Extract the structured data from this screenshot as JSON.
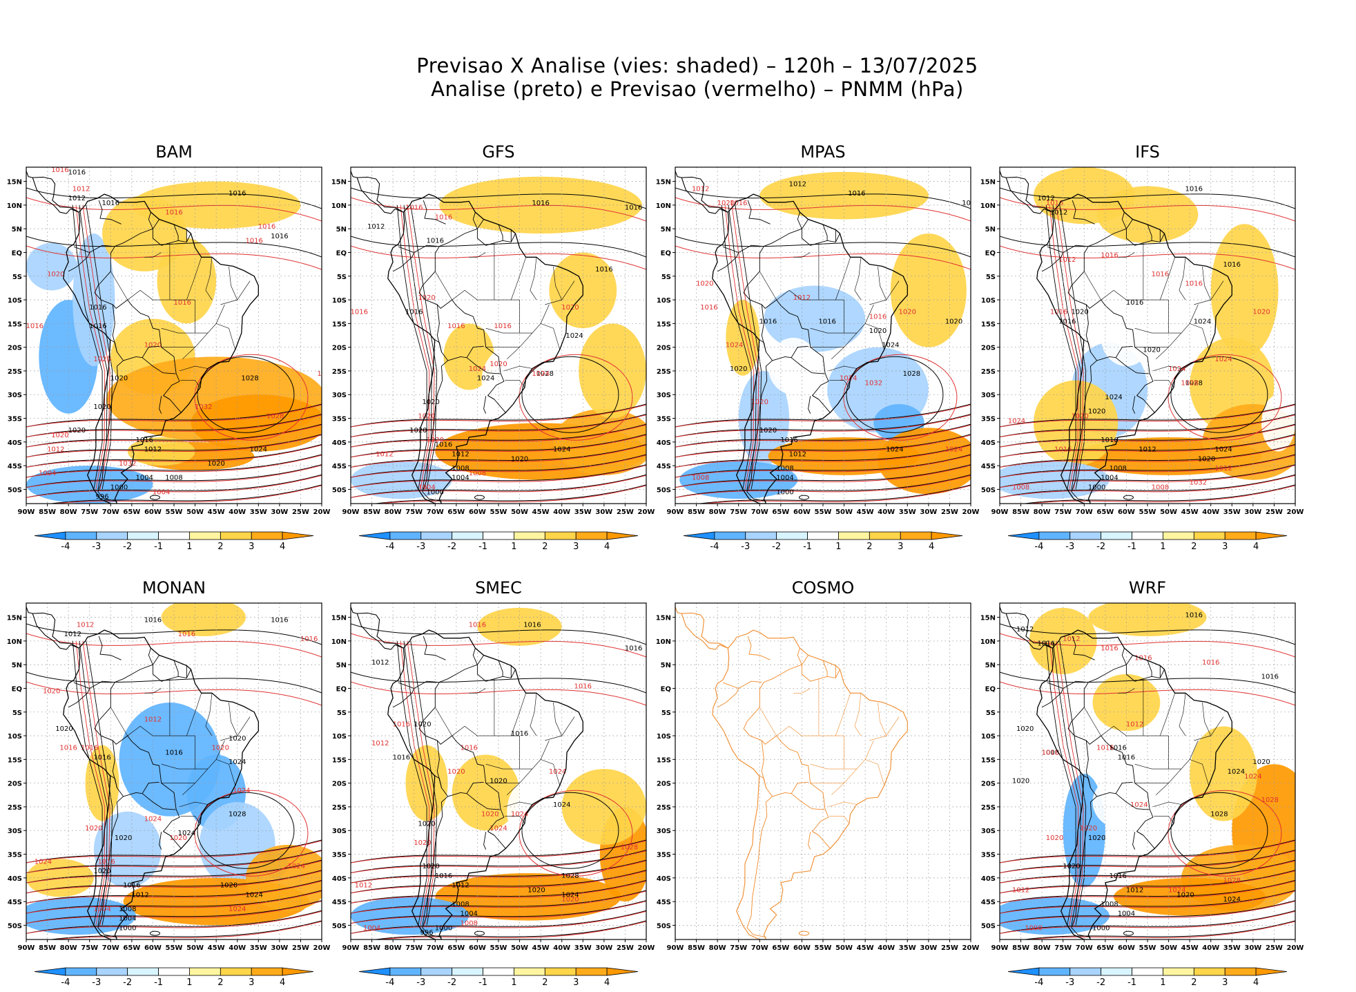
{
  "title": {
    "line1": "Previsao X Analise (vies: shaded) – 120h – 13/07/2025",
    "line2": "Analise (preto) e Previsao (vermelho) – PNMM (hPa)"
  },
  "panels": [
    {
      "name": "BAM",
      "has_data": true
    },
    {
      "name": "GFS",
      "has_data": true
    },
    {
      "name": "MPAS",
      "has_data": true
    },
    {
      "name": "IFS",
      "has_data": true
    },
    {
      "name": "MONAN",
      "has_data": true
    },
    {
      "name": "SMEC",
      "has_data": true
    },
    {
      "name": "COSMO",
      "has_data": false
    },
    {
      "name": "WRF",
      "has_data": true
    }
  ],
  "lat_ticks": [
    "15N",
    "10N",
    "5N",
    "EQ",
    "5S",
    "10S",
    "15S",
    "20S",
    "25S",
    "30S",
    "35S",
    "40S",
    "45S",
    "50S"
  ],
  "lon_ticks": [
    "90W",
    "85W",
    "80W",
    "75W",
    "70W",
    "65W",
    "60W",
    "55W",
    "50W",
    "45W",
    "40W",
    "35W",
    "30W",
    "25W",
    "20W"
  ],
  "colorbar": {
    "labels": [
      "-4",
      "-3",
      "-2",
      "-1",
      "1",
      "2",
      "3",
      "4"
    ],
    "colors": [
      "#1e90ff",
      "#5fb4ff",
      "#a8d4ff",
      "#d7f4ff",
      "#ffffff",
      "#fff5a0",
      "#ffd54a",
      "#ffab1a",
      "#ff9900"
    ]
  },
  "contour_labels": {
    "analysis": [
      "1016",
      "1012",
      "1020",
      "1024",
      "1028",
      "1008",
      "1004",
      "1000",
      "996"
    ],
    "forecast": [
      "1016",
      "1012",
      "1020",
      "1024",
      "1028",
      "1032",
      "1008",
      "1004",
      "1000",
      "996"
    ]
  },
  "colors": {
    "analysis": "#000000",
    "forecast": "#e03030",
    "coast_cosmo": "#f08a2a",
    "coast": "#000000",
    "grid": "#999999"
  }
}
